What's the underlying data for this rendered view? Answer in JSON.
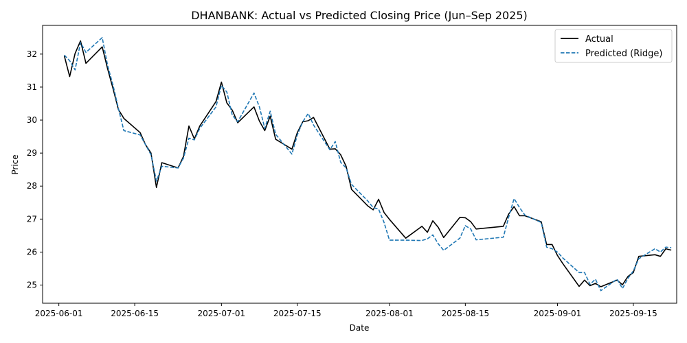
{
  "chart_data": {
    "type": "line",
    "title": "DHANBANK: Actual vs Predicted Closing Price (Jun–Sep 2025)",
    "xlabel": "Date",
    "ylabel": "Price",
    "x_range": [
      "2025-05-29",
      "2025-09-23"
    ],
    "ylim": [
      24.45,
      32.87
    ],
    "x_ticks": [
      "2025-06-01",
      "2025-06-15",
      "2025-07-01",
      "2025-07-15",
      "2025-08-01",
      "2025-08-15",
      "2025-09-01",
      "2025-09-15"
    ],
    "y_ticks": [
      25,
      26,
      27,
      28,
      29,
      30,
      31,
      32
    ],
    "grid": false,
    "legend_position": "upper right",
    "series": [
      {
        "name": "Actual",
        "color": "#000000",
        "style": "solid",
        "points": [
          [
            "2025-06-02",
            31.95
          ],
          [
            "2025-06-03",
            31.32
          ],
          [
            "2025-06-04",
            32.02
          ],
          [
            "2025-06-05",
            32.4
          ],
          [
            "2025-06-06",
            31.72
          ],
          [
            "2025-06-09",
            32.22
          ],
          [
            "2025-06-10",
            31.55
          ],
          [
            "2025-06-11",
            30.95
          ],
          [
            "2025-06-12",
            30.32
          ],
          [
            "2025-06-13",
            30.05
          ],
          [
            "2025-06-16",
            29.62
          ],
          [
            "2025-06-17",
            29.25
          ],
          [
            "2025-06-18",
            29.0
          ],
          [
            "2025-06-19",
            27.96
          ],
          [
            "2025-06-20",
            28.71
          ],
          [
            "2025-06-23",
            28.55
          ],
          [
            "2025-06-24",
            28.9
          ],
          [
            "2025-06-25",
            29.82
          ],
          [
            "2025-06-26",
            29.43
          ],
          [
            "2025-06-27",
            29.82
          ],
          [
            "2025-06-30",
            30.56
          ],
          [
            "2025-07-01",
            31.15
          ],
          [
            "2025-07-02",
            30.52
          ],
          [
            "2025-07-03",
            30.3
          ],
          [
            "2025-07-04",
            29.92
          ],
          [
            "2025-07-07",
            30.4
          ],
          [
            "2025-07-08",
            29.97
          ],
          [
            "2025-07-09",
            29.68
          ],
          [
            "2025-07-10",
            30.12
          ],
          [
            "2025-07-11",
            29.42
          ],
          [
            "2025-07-14",
            29.12
          ],
          [
            "2025-07-15",
            29.62
          ],
          [
            "2025-07-16",
            29.95
          ],
          [
            "2025-07-17",
            29.98
          ],
          [
            "2025-07-18",
            30.08
          ],
          [
            "2025-07-21",
            29.12
          ],
          [
            "2025-07-22",
            29.13
          ],
          [
            "2025-07-23",
            28.95
          ],
          [
            "2025-07-24",
            28.6
          ],
          [
            "2025-07-25",
            27.9
          ],
          [
            "2025-07-28",
            27.4
          ],
          [
            "2025-07-29",
            27.28
          ],
          [
            "2025-07-30",
            27.6
          ],
          [
            "2025-07-31",
            27.2
          ],
          [
            "2025-08-01",
            26.99
          ],
          [
            "2025-08-04",
            26.42
          ],
          [
            "2025-08-07",
            26.78
          ],
          [
            "2025-08-08",
            26.6
          ],
          [
            "2025-08-09",
            26.95
          ],
          [
            "2025-08-10",
            26.75
          ],
          [
            "2025-08-11",
            26.44
          ],
          [
            "2025-08-14",
            27.05
          ],
          [
            "2025-08-15",
            27.04
          ],
          [
            "2025-08-16",
            26.92
          ],
          [
            "2025-08-17",
            26.7
          ],
          [
            "2025-08-22",
            26.78
          ],
          [
            "2025-08-23",
            27.15
          ],
          [
            "2025-08-24",
            27.38
          ],
          [
            "2025-08-25",
            27.1
          ],
          [
            "2025-08-26",
            27.1
          ],
          [
            "2025-08-29",
            26.92
          ],
          [
            "2025-08-30",
            26.23
          ],
          [
            "2025-08-31",
            26.23
          ],
          [
            "2025-09-01",
            25.9
          ],
          [
            "2025-09-02",
            25.65
          ],
          [
            "2025-09-05",
            24.96
          ],
          [
            "2025-09-06",
            25.15
          ],
          [
            "2025-09-07",
            24.98
          ],
          [
            "2025-09-08",
            25.05
          ],
          [
            "2025-09-09",
            24.95
          ],
          [
            "2025-09-12",
            25.15
          ],
          [
            "2025-09-13",
            25.01
          ],
          [
            "2025-09-14",
            25.26
          ],
          [
            "2025-09-15",
            25.38
          ],
          [
            "2025-09-16",
            25.87
          ],
          [
            "2025-09-19",
            25.92
          ],
          [
            "2025-09-20",
            25.87
          ],
          [
            "2025-09-21",
            26.1
          ],
          [
            "2025-09-22",
            26.06
          ]
        ]
      },
      {
        "name": "Predicted (Ridge)",
        "color": "#1f77b4",
        "style": "dashed",
        "points": [
          [
            "2025-06-02",
            31.97
          ],
          [
            "2025-06-03",
            31.8
          ],
          [
            "2025-06-04",
            31.52
          ],
          [
            "2025-06-05",
            32.35
          ],
          [
            "2025-06-06",
            32.05
          ],
          [
            "2025-06-09",
            32.5
          ],
          [
            "2025-06-10",
            31.65
          ],
          [
            "2025-06-11",
            31.05
          ],
          [
            "2025-06-12",
            30.35
          ],
          [
            "2025-06-13",
            29.68
          ],
          [
            "2025-06-16",
            29.55
          ],
          [
            "2025-06-17",
            29.25
          ],
          [
            "2025-06-18",
            28.95
          ],
          [
            "2025-06-19",
            28.15
          ],
          [
            "2025-06-20",
            28.6
          ],
          [
            "2025-06-23",
            28.55
          ],
          [
            "2025-06-24",
            28.85
          ],
          [
            "2025-06-25",
            29.45
          ],
          [
            "2025-06-26",
            29.4
          ],
          [
            "2025-06-27",
            29.75
          ],
          [
            "2025-06-30",
            30.4
          ],
          [
            "2025-07-01",
            31.05
          ],
          [
            "2025-07-02",
            30.85
          ],
          [
            "2025-07-03",
            30.15
          ],
          [
            "2025-07-04",
            29.95
          ],
          [
            "2025-07-07",
            30.82
          ],
          [
            "2025-07-08",
            30.4
          ],
          [
            "2025-07-09",
            29.75
          ],
          [
            "2025-07-10",
            30.27
          ],
          [
            "2025-07-11",
            29.57
          ],
          [
            "2025-07-14",
            28.97
          ],
          [
            "2025-07-15",
            29.55
          ],
          [
            "2025-07-16",
            29.95
          ],
          [
            "2025-07-17",
            30.2
          ],
          [
            "2025-07-18",
            29.85
          ],
          [
            "2025-07-21",
            29.1
          ],
          [
            "2025-07-22",
            29.35
          ],
          [
            "2025-07-23",
            28.72
          ],
          [
            "2025-07-24",
            28.55
          ],
          [
            "2025-07-25",
            28.05
          ],
          [
            "2025-07-28",
            27.55
          ],
          [
            "2025-07-29",
            27.35
          ],
          [
            "2025-07-30",
            27.3
          ],
          [
            "2025-07-31",
            26.9
          ],
          [
            "2025-08-01",
            26.36
          ],
          [
            "2025-08-04",
            26.36
          ],
          [
            "2025-08-07",
            26.35
          ],
          [
            "2025-08-08",
            26.4
          ],
          [
            "2025-08-09",
            26.52
          ],
          [
            "2025-08-10",
            26.25
          ],
          [
            "2025-08-11",
            26.05
          ],
          [
            "2025-08-14",
            26.42
          ],
          [
            "2025-08-15",
            26.8
          ],
          [
            "2025-08-16",
            26.7
          ],
          [
            "2025-08-17",
            26.37
          ],
          [
            "2025-08-22",
            26.45
          ],
          [
            "2025-08-23",
            27.05
          ],
          [
            "2025-08-24",
            27.62
          ],
          [
            "2025-08-25",
            27.35
          ],
          [
            "2025-08-26",
            27.12
          ],
          [
            "2025-08-29",
            26.9
          ],
          [
            "2025-08-30",
            26.15
          ],
          [
            "2025-08-31",
            26.1
          ],
          [
            "2025-09-01",
            26.0
          ],
          [
            "2025-09-02",
            25.82
          ],
          [
            "2025-09-05",
            25.38
          ],
          [
            "2025-09-06",
            25.38
          ],
          [
            "2025-09-07",
            25.02
          ],
          [
            "2025-09-08",
            25.18
          ],
          [
            "2025-09-09",
            24.83
          ],
          [
            "2025-09-12",
            25.18
          ],
          [
            "2025-09-13",
            24.9
          ],
          [
            "2025-09-14",
            25.2
          ],
          [
            "2025-09-15",
            25.43
          ],
          [
            "2025-09-16",
            25.8
          ],
          [
            "2025-09-19",
            26.1
          ],
          [
            "2025-09-20",
            26.0
          ],
          [
            "2025-09-21",
            26.15
          ],
          [
            "2025-09-22",
            26.13
          ]
        ]
      }
    ]
  }
}
